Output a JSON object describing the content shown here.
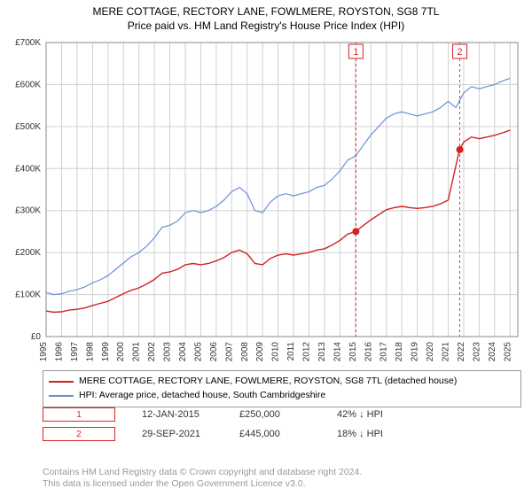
{
  "title_line1": "MERE COTTAGE, RECTORY LANE, FOWLMERE, ROYSTON, SG8 7TL",
  "title_line2": "Price paid vs. HM Land Registry's House Price Index (HPI)",
  "chart": {
    "type": "line",
    "plot_background": "#ffffff",
    "grid_color": "#d0d0d0",
    "axis_color": "#888888",
    "axis_font_size": 10,
    "y_axis": {
      "min": 0,
      "max": 700000,
      "tick_step": 100000,
      "tick_labels": [
        "£0",
        "£100K",
        "£200K",
        "£300K",
        "£400K",
        "£500K",
        "£600K",
        "£700K"
      ]
    },
    "x_axis": {
      "min": 1995,
      "max": 2025.5,
      "ticks": [
        1995,
        1996,
        1997,
        1998,
        1999,
        2000,
        2001,
        2002,
        2003,
        2004,
        2005,
        2006,
        2007,
        2008,
        2009,
        2010,
        2011,
        2012,
        2013,
        2014,
        2015,
        2016,
        2017,
        2018,
        2019,
        2020,
        2021,
        2022,
        2023,
        2024,
        2025
      ]
    },
    "series": [
      {
        "name": "hpi",
        "color": "#6a8fd8",
        "width": 1.2,
        "points": [
          [
            1995,
            105000
          ],
          [
            1995.5,
            100000
          ],
          [
            1996,
            102000
          ],
          [
            1996.5,
            108000
          ],
          [
            1997,
            112000
          ],
          [
            1997.5,
            118000
          ],
          [
            1998,
            128000
          ],
          [
            1998.5,
            135000
          ],
          [
            1999,
            145000
          ],
          [
            1999.5,
            160000
          ],
          [
            2000,
            175000
          ],
          [
            2000.5,
            190000
          ],
          [
            2001,
            200000
          ],
          [
            2001.5,
            215000
          ],
          [
            2002,
            235000
          ],
          [
            2002.5,
            260000
          ],
          [
            2003,
            265000
          ],
          [
            2003.5,
            275000
          ],
          [
            2004,
            295000
          ],
          [
            2004.5,
            300000
          ],
          [
            2005,
            295000
          ],
          [
            2005.5,
            300000
          ],
          [
            2006,
            310000
          ],
          [
            2006.5,
            325000
          ],
          [
            2007,
            345000
          ],
          [
            2007.5,
            355000
          ],
          [
            2008,
            340000
          ],
          [
            2008.5,
            300000
          ],
          [
            2009,
            295000
          ],
          [
            2009.5,
            320000
          ],
          [
            2010,
            335000
          ],
          [
            2010.5,
            340000
          ],
          [
            2011,
            335000
          ],
          [
            2011.5,
            340000
          ],
          [
            2012,
            345000
          ],
          [
            2012.5,
            355000
          ],
          [
            2013,
            360000
          ],
          [
            2013.5,
            375000
          ],
          [
            2014,
            395000
          ],
          [
            2014.5,
            420000
          ],
          [
            2015,
            430000
          ],
          [
            2015.5,
            455000
          ],
          [
            2016,
            480000
          ],
          [
            2016.5,
            500000
          ],
          [
            2017,
            520000
          ],
          [
            2017.5,
            530000
          ],
          [
            2018,
            535000
          ],
          [
            2018.5,
            530000
          ],
          [
            2019,
            525000
          ],
          [
            2019.5,
            530000
          ],
          [
            2020,
            535000
          ],
          [
            2020.5,
            545000
          ],
          [
            2021,
            560000
          ],
          [
            2021.5,
            545000
          ],
          [
            2022,
            580000
          ],
          [
            2022.5,
            595000
          ],
          [
            2023,
            590000
          ],
          [
            2023.5,
            595000
          ],
          [
            2024,
            600000
          ],
          [
            2024.5,
            608000
          ],
          [
            2025,
            615000
          ]
        ]
      },
      {
        "name": "property",
        "color": "#d22222",
        "width": 1.4,
        "points": [
          [
            1995,
            61000
          ],
          [
            1995.5,
            58000
          ],
          [
            1996,
            59000
          ],
          [
            1996.5,
            63000
          ],
          [
            1997,
            65000
          ],
          [
            1997.5,
            68000
          ],
          [
            1998,
            74000
          ],
          [
            1998.5,
            79000
          ],
          [
            1999,
            84000
          ],
          [
            1999.5,
            93000
          ],
          [
            2000,
            102000
          ],
          [
            2000.5,
            110000
          ],
          [
            2001,
            116000
          ],
          [
            2001.5,
            125000
          ],
          [
            2002,
            136000
          ],
          [
            2002.5,
            151000
          ],
          [
            2003,
            154000
          ],
          [
            2003.5,
            160000
          ],
          [
            2004,
            171000
          ],
          [
            2004.5,
            174000
          ],
          [
            2005,
            171000
          ],
          [
            2005.5,
            174000
          ],
          [
            2006,
            180000
          ],
          [
            2006.5,
            188000
          ],
          [
            2007,
            200000
          ],
          [
            2007.5,
            206000
          ],
          [
            2008,
            197000
          ],
          [
            2008.5,
            174000
          ],
          [
            2009,
            171000
          ],
          [
            2009.5,
            186000
          ],
          [
            2010,
            194000
          ],
          [
            2010.5,
            197000
          ],
          [
            2011,
            194000
          ],
          [
            2011.5,
            197000
          ],
          [
            2012,
            200000
          ],
          [
            2012.5,
            206000
          ],
          [
            2013,
            209000
          ],
          [
            2013.5,
            218000
          ],
          [
            2014,
            229000
          ],
          [
            2014.5,
            244000
          ],
          [
            2015,
            250000
          ],
          [
            2015.5,
            264000
          ],
          [
            2016,
            278000
          ],
          [
            2016.5,
            290000
          ],
          [
            2017,
            302000
          ],
          [
            2017.5,
            307000
          ],
          [
            2018,
            310000
          ],
          [
            2018.5,
            307000
          ],
          [
            2019,
            305000
          ],
          [
            2019.5,
            307000
          ],
          [
            2020,
            310000
          ],
          [
            2020.5,
            316000
          ],
          [
            2021,
            325000
          ],
          [
            2021.73,
            445000
          ],
          [
            2022,
            463000
          ],
          [
            2022.5,
            475000
          ],
          [
            2023,
            471000
          ],
          [
            2023.5,
            475000
          ],
          [
            2024,
            479000
          ],
          [
            2024.5,
            485000
          ],
          [
            2025,
            491000
          ]
        ]
      }
    ],
    "sale_markers": [
      {
        "n": "1",
        "x": 2015.03,
        "y": 250000
      },
      {
        "n": "2",
        "x": 2021.75,
        "y": 445000
      }
    ],
    "marker_color": "#d22222",
    "marker_dot_radius": 4
  },
  "legend": {
    "items": [
      {
        "color": "#d22222",
        "label": "MERE COTTAGE, RECTORY LANE, FOWLMERE, ROYSTON, SG8 7TL (detached house)"
      },
      {
        "color": "#6a8fd8",
        "label": "HPI: Average price, detached house, South Cambridgeshire"
      }
    ]
  },
  "sales": [
    {
      "n": "1",
      "date": "12-JAN-2015",
      "price": "£250,000",
      "diff": "42% ↓ HPI"
    },
    {
      "n": "2",
      "date": "29-SEP-2021",
      "price": "£445,000",
      "diff": "18% ↓ HPI"
    }
  ],
  "attribution": {
    "line1": "Contains HM Land Registry data © Crown copyright and database right 2024.",
    "line2": "This data is licensed under the Open Government Licence v3.0."
  }
}
